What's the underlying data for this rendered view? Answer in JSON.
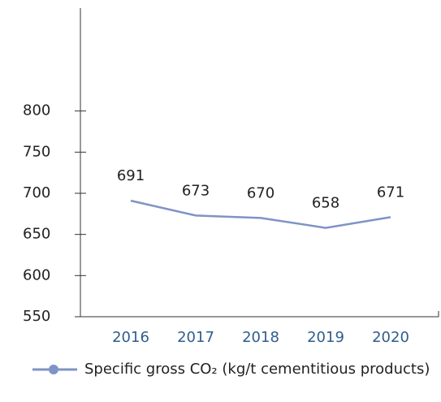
{
  "chart_data": {
    "type": "line",
    "categories": [
      "2016",
      "2017",
      "2018",
      "2019",
      "2020"
    ],
    "series": [
      {
        "name": "Specific gross CO₂ (kg/t cementitious products)",
        "color": "#7f93c6",
        "values": [
          691,
          673,
          670,
          658,
          671
        ]
      }
    ],
    "ylim": [
      550,
      925
    ],
    "yticks": [
      550,
      600,
      650,
      700,
      750,
      800
    ],
    "grid": false,
    "legend": "bottom"
  }
}
